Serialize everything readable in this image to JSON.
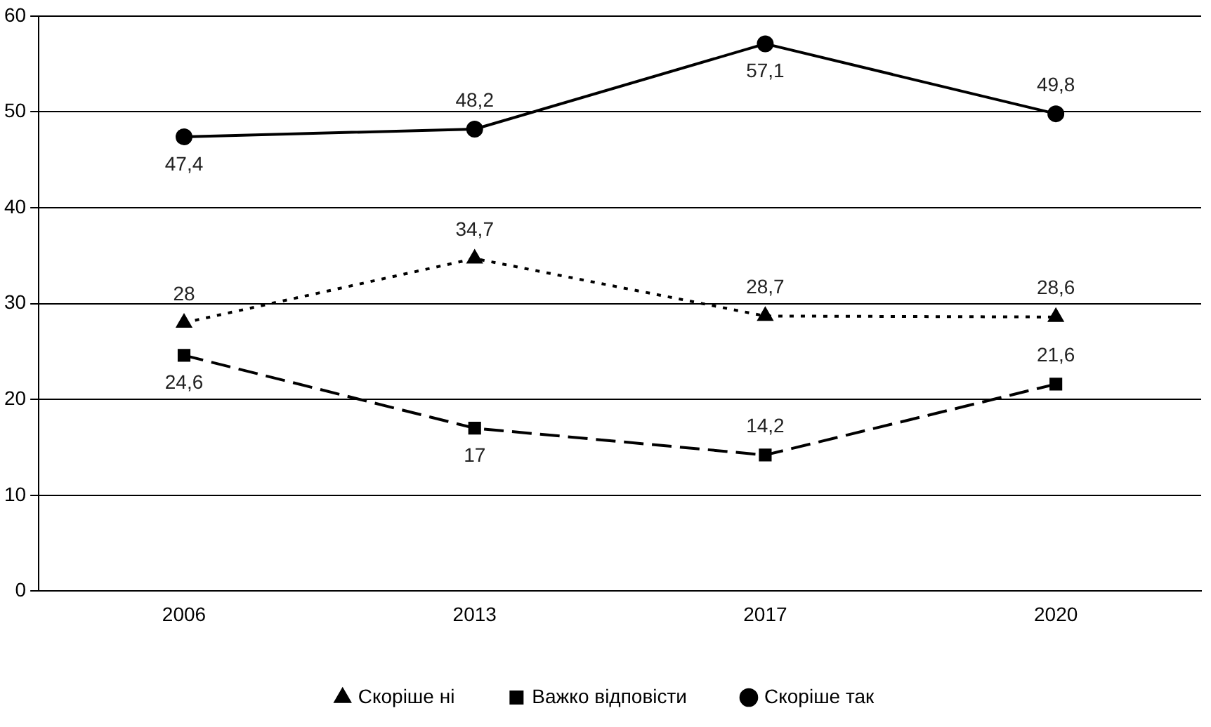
{
  "chart_data": {
    "type": "line",
    "categories": [
      "2006",
      "2013",
      "2017",
      "2020"
    ],
    "ylim": [
      0,
      60
    ],
    "yticks": [
      0,
      10,
      20,
      30,
      40,
      50,
      60
    ],
    "grid": "y",
    "legend": "bottom",
    "series": [
      {
        "name": "Скоріше ні",
        "color": "#000000",
        "values": [
          28,
          34.7,
          28.7,
          28.6
        ],
        "value_labels": [
          "28",
          "34,7",
          "28,7",
          "28,6"
        ],
        "marker": "triangle",
        "line_style": "dotted"
      },
      {
        "name": "Важко відповісти",
        "color": "#000000",
        "values": [
          24.6,
          17,
          14.2,
          21.6
        ],
        "value_labels": [
          "24,6",
          "17",
          "14,2",
          "21,6"
        ],
        "marker": "square",
        "line_style": "dashed"
      },
      {
        "name": "Скоріше так",
        "color": "#000000",
        "values": [
          47.4,
          48.2,
          57.1,
          49.8
        ],
        "value_labels": [
          "47,4",
          "48,2",
          "57,1",
          "49,8"
        ],
        "marker": "circle",
        "line_style": "solid"
      }
    ]
  }
}
